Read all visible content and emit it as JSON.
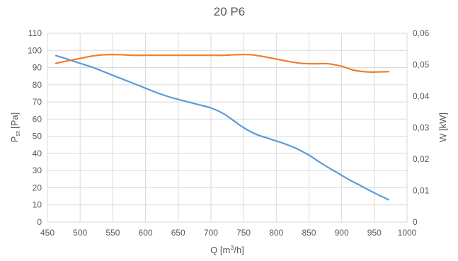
{
  "chart_data": {
    "type": "line",
    "title": "20 P6",
    "xlabel": {
      "main": "Q [m",
      "sup": "3",
      "tail": "/h]"
    },
    "ylabel_left": {
      "main": "P",
      "sub": "st",
      "tail": " [Pa]"
    },
    "ylabel_right": "W [kW]",
    "xlim": [
      450,
      1000
    ],
    "ylim_left": [
      0,
      110
    ],
    "ylim_right": [
      0,
      0.06
    ],
    "x_ticks": [
      "450",
      "500",
      "550",
      "600",
      "650",
      "700",
      "750",
      "800",
      "850",
      "900",
      "950",
      "1000"
    ],
    "y_left_ticks": [
      "0",
      "10",
      "20",
      "30",
      "40",
      "50",
      "60",
      "70",
      "80",
      "90",
      "100",
      "110"
    ],
    "y_right_ticks": [
      "0",
      "0,01",
      "0,02",
      "0,03",
      "0,04",
      "0,05",
      "0,06"
    ],
    "grid": true,
    "series": [
      {
        "axis": "left",
        "color": "#5B9BD5",
        "x": [
          463,
          480,
          500,
          520,
          540,
          560,
          580,
          600,
          620,
          640,
          660,
          680,
          700,
          720,
          735,
          750,
          770,
          790,
          810,
          830,
          850,
          870,
          890,
          910,
          930,
          950,
          972
        ],
        "y": [
          97,
          95,
          92.5,
          90,
          87,
          84,
          81,
          78,
          75,
          72.5,
          70.5,
          68.5,
          66.5,
          63,
          59,
          55,
          51,
          48.5,
          46,
          43,
          39,
          34,
          29.5,
          25,
          21,
          17,
          13
        ]
      },
      {
        "axis": "right",
        "color": "#ED7D31",
        "x": [
          463,
          480,
          500,
          520,
          540,
          560,
          580,
          600,
          650,
          700,
          720,
          740,
          760,
          780,
          800,
          820,
          840,
          860,
          880,
          900,
          920,
          940,
          955,
          972
        ],
        "y": [
          0.0504,
          0.0512,
          0.052,
          0.0528,
          0.0532,
          0.0532,
          0.053,
          0.053,
          0.053,
          0.053,
          0.053,
          0.0532,
          0.0532,
          0.0526,
          0.0518,
          0.051,
          0.0504,
          0.0503,
          0.0503,
          0.0495,
          0.0482,
          0.0477,
          0.0477,
          0.0478
        ]
      }
    ]
  }
}
